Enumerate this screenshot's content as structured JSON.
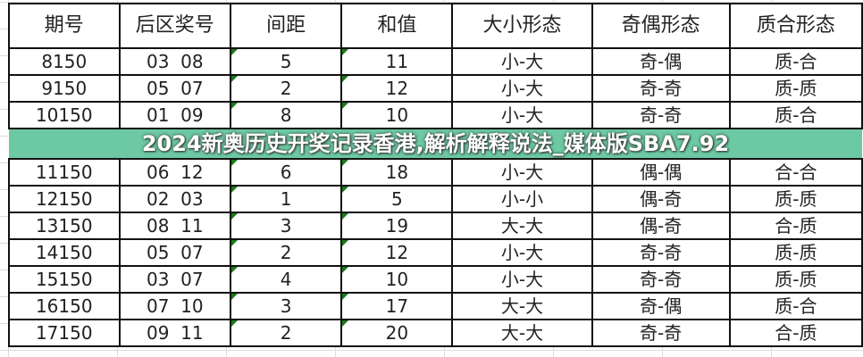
{
  "table": {
    "headers": [
      "期号",
      "后区奖号",
      "间距",
      "和值",
      "大小形态",
      "奇偶形态",
      "质合形态"
    ],
    "rows": [
      [
        "8150",
        "03  08",
        "5",
        "11",
        "小-大",
        "奇-偶",
        "质-合"
      ],
      [
        "9150",
        "05  07",
        "2",
        "12",
        "小-大",
        "奇-奇",
        "质-质"
      ],
      [
        "10150",
        "01  09",
        "8",
        "10",
        "小-大",
        "奇-奇",
        "质-合"
      ],
      [
        "11150",
        "06  12",
        "6",
        "18",
        "小-大",
        "偶-偶",
        "合-合"
      ],
      [
        "12150",
        "02  03",
        "1",
        "5",
        "小-小",
        "偶-奇",
        "质-质"
      ],
      [
        "13150",
        "08  11",
        "3",
        "19",
        "大-大",
        "偶-奇",
        "合-质"
      ],
      [
        "14150",
        "05  07",
        "2",
        "12",
        "小-大",
        "奇-奇",
        "质-质"
      ],
      [
        "15150",
        "03  07",
        "4",
        "10",
        "小-大",
        "奇-奇",
        "质-质"
      ],
      [
        "16150",
        "07  10",
        "3",
        "17",
        "大-大",
        "奇-偶",
        "质-合"
      ],
      [
        "17150",
        "09  11",
        "2",
        "20",
        "大-大",
        "奇-奇",
        "合-质"
      ]
    ]
  },
  "banner": {
    "text": "2024新奥历史开奖记录香港,解析解释说法_媒体版SBA7.92"
  },
  "colors": {
    "banner": "#50be91",
    "cell_marker": "#1a7a1a"
  }
}
